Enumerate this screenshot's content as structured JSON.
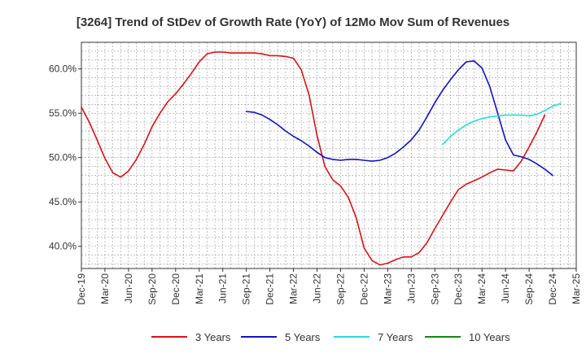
{
  "chart_data": {
    "type": "line",
    "title": "[3264]  Trend of StDev of Growth Rate (YoY) of 12Mo Mov Sum of Revenues",
    "xlabel": "",
    "ylabel": "",
    "ylim": [
      37.5,
      63.0
    ],
    "y_ticks": [
      {
        "value": 40,
        "label": "40.0%"
      },
      {
        "value": 45,
        "label": "45.0%"
      },
      {
        "value": 50,
        "label": "50.0%"
      },
      {
        "value": 55,
        "label": "55.0%"
      },
      {
        "value": 60,
        "label": "60.0%"
      }
    ],
    "x_start": "Dec-19",
    "x_months": 63,
    "x_ticks": [
      "Dec-19",
      "Mar-20",
      "Jun-20",
      "Sep-20",
      "Dec-20",
      "Mar-21",
      "Jun-21",
      "Sep-21",
      "Dec-21",
      "Mar-22",
      "Jun-22",
      "Sep-22",
      "Dec-22",
      "Mar-23",
      "Jun-23",
      "Sep-23",
      "Dec-23",
      "Mar-24",
      "Jun-24",
      "Sep-24",
      "Dec-24",
      "Mar-25"
    ],
    "legend_position": "bottom",
    "series": [
      {
        "name": "3 Years",
        "color": "#dd1111",
        "start_index": 0,
        "values": [
          55.7,
          54.0,
          52.0,
          49.9,
          48.3,
          47.8,
          48.5,
          49.8,
          51.5,
          53.5,
          55.0,
          56.3,
          57.2,
          58.3,
          59.5,
          60.8,
          61.7,
          61.9,
          61.9,
          61.8,
          61.8,
          61.8,
          61.8,
          61.7,
          61.5,
          61.5,
          61.4,
          61.2,
          59.9,
          57.0,
          52.5,
          49.0,
          47.5,
          46.8,
          45.5,
          43.2,
          39.8,
          38.4,
          37.9,
          38.1,
          38.5,
          38.8,
          38.8,
          39.3,
          40.4,
          42.0,
          43.5,
          45.0,
          46.4,
          47.0,
          47.4,
          47.8,
          48.3,
          48.7,
          48.6,
          48.5,
          49.6,
          51.2,
          52.9,
          54.8
        ]
      },
      {
        "name": "5 Years",
        "color": "#1111cc",
        "start_index": 21,
        "values": [
          55.2,
          55.1,
          54.8,
          54.3,
          53.7,
          53.0,
          52.4,
          51.9,
          51.3,
          50.6,
          50.0,
          49.8,
          49.7,
          49.8,
          49.8,
          49.7,
          49.6,
          49.7,
          50.0,
          50.5,
          51.2,
          52.0,
          53.1,
          54.6,
          56.2,
          57.6,
          58.8,
          59.9,
          60.8,
          60.9,
          60.1,
          58.0,
          55.0,
          52.0,
          50.3,
          50.1,
          49.8,
          49.3,
          48.7,
          48.0
        ]
      },
      {
        "name": "7 Years",
        "color": "#22dddd",
        "start_index": 46,
        "values": [
          51.5,
          52.4,
          53.1,
          53.7,
          54.1,
          54.4,
          54.6,
          54.7,
          54.8,
          54.8,
          54.8,
          54.7,
          54.9,
          55.3,
          55.8,
          56.1
        ]
      },
      {
        "name": "10 Years",
        "color": "#118811",
        "start_index": 0,
        "values": []
      }
    ]
  }
}
